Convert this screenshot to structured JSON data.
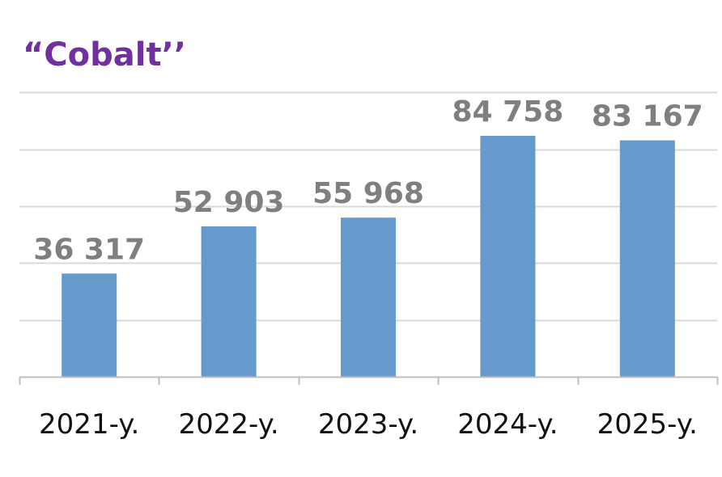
{
  "chart_data": {
    "type": "bar",
    "title": "“Cobalt’’",
    "title_color": "#7030a0",
    "bar_color": "#6699cc",
    "value_label_color": "#7f7f7f",
    "gridline_color": "#d9d9d9",
    "axis_color": "#bfbfbf",
    "categories": [
      "2021-y.",
      "2022-y.",
      "2023-y.",
      "2024-y.",
      "2025-y."
    ],
    "values": [
      36317,
      52903,
      55968,
      84758,
      83167
    ],
    "value_labels": [
      "36 317",
      "52 903",
      "55 968",
      "84 758",
      "83 167"
    ],
    "ylim": [
      0,
      100000
    ],
    "grid": true,
    "legend": "none",
    "xlabel": "",
    "ylabel": ""
  }
}
